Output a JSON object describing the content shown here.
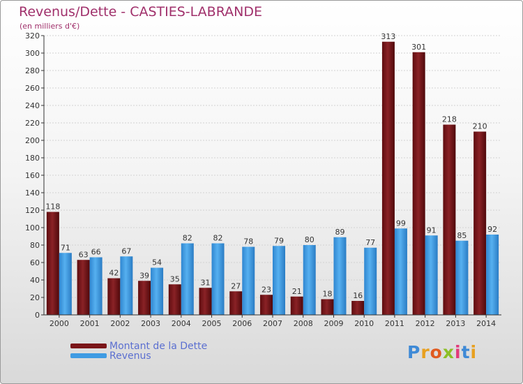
{
  "header": {
    "title": "Revenus/Dette - CASTIES-LABRANDE",
    "subtitle": "(en milliers d'€)"
  },
  "logo_text": "Proxiti",
  "colors": {
    "title": "#a0306b",
    "debt_series": "#7a1518",
    "revenue_series": "#3f9be3",
    "legend_text": "#5b6fd0"
  },
  "chart_data": {
    "type": "bar",
    "title": "Revenus/Dette - CASTIES-LABRANDE",
    "ylabel": "(en milliers d'€)",
    "xlabel": "",
    "ylim": [
      0,
      320
    ],
    "yticks": [
      0,
      20,
      40,
      60,
      80,
      100,
      120,
      140,
      160,
      180,
      200,
      220,
      240,
      260,
      280,
      300,
      320
    ],
    "grid": true,
    "legend_position": "bottom-left",
    "categories": [
      "2000",
      "2001",
      "2002",
      "2003",
      "2004",
      "2005",
      "2006",
      "2007",
      "2008",
      "2009",
      "2010",
      "2011",
      "2012",
      "2013",
      "2014"
    ],
    "series": [
      {
        "name": "Montant de la Dette",
        "color": "#7a1518",
        "values": [
          118,
          63,
          42,
          39,
          35,
          31,
          27,
          23,
          21,
          18,
          16,
          313,
          301,
          218,
          210
        ]
      },
      {
        "name": "Revenus",
        "color": "#3f9be3",
        "values": [
          71,
          66,
          67,
          54,
          82,
          82,
          78,
          79,
          80,
          89,
          77,
          99,
          91,
          85,
          92
        ]
      }
    ]
  }
}
